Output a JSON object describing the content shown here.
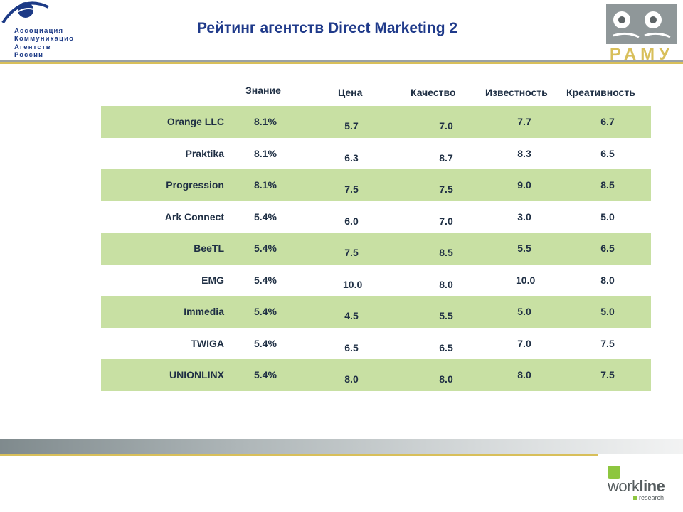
{
  "title": "Рейтинг агентств Direct Marketing 2",
  "logo_left": {
    "lines": [
      "Ассоциация",
      "Коммуникацио",
      "Агентств",
      "России"
    ]
  },
  "logo_right": {
    "text": "РАМУ"
  },
  "table": {
    "headers": {
      "znanie": "Знание",
      "cena": "Цена",
      "kachestvo": "Качество",
      "izvestnost": "Известность",
      "kreativnost": "Креативность"
    },
    "rows": [
      {
        "name": "Orange LLC",
        "znanie": "8.1%",
        "cena": "5.7",
        "kachestvo": "7.0",
        "izvestnost": "7.7",
        "kreativnost": "6.7"
      },
      {
        "name": "Praktika",
        "znanie": "8.1%",
        "cena": "6.3",
        "kachestvo": "8.7",
        "izvestnost": "8.3",
        "kreativnost": "6.5"
      },
      {
        "name": "Progression",
        "znanie": "8.1%",
        "cena": "7.5",
        "kachestvo": "7.5",
        "izvestnost": "9.0",
        "kreativnost": "8.5"
      },
      {
        "name": "Ark Connect",
        "znanie": "5.4%",
        "cena": "6.0",
        "kachestvo": "7.0",
        "izvestnost": "3.0",
        "kreativnost": "5.0"
      },
      {
        "name": "BeeTL",
        "znanie": "5.4%",
        "cena": "7.5",
        "kachestvo": "8.5",
        "izvestnost": "5.5",
        "kreativnost": "6.5"
      },
      {
        "name": "EMG",
        "znanie": "5.4%",
        "cena": "10.0",
        "kachestvo": "8.0",
        "izvestnost": "10.0",
        "kreativnost": "8.0"
      },
      {
        "name": "Immedia",
        "znanie": "5.4%",
        "cena": "4.5",
        "kachestvo": "5.5",
        "izvestnost": "5.0",
        "kreativnost": "5.0"
      },
      {
        "name": "TWIGA",
        "znanie": "5.4%",
        "cena": "6.5",
        "kachestvo": "6.5",
        "izvestnost": "7.0",
        "kreativnost": "7.5"
      },
      {
        "name": "UNIONLINX",
        "znanie": "5.4%",
        "cena": "8.0",
        "kachestvo": "8.0",
        "izvestnost": "8.0",
        "kreativnost": "7.5"
      }
    ]
  },
  "footer": {
    "workline_word_light": "work",
    "workline_word_bold": "line",
    "workline_sub": "research"
  },
  "colors": {
    "row_green": "#c8e0a3",
    "title_blue": "#1f3a8a",
    "gold_line": "#d8bf5a"
  }
}
